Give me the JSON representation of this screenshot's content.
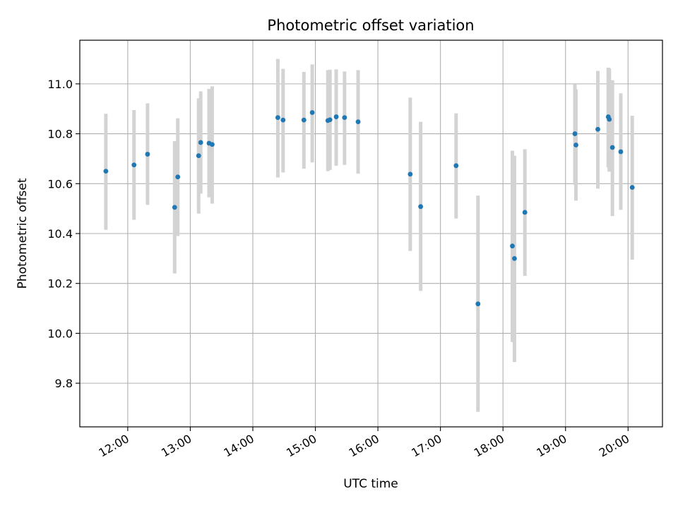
{
  "chart_data": {
    "type": "scatter",
    "title": "Photometric offset variation",
    "xlabel": "UTC time",
    "ylabel": "Photometric offset",
    "x_tick_labels": [
      "12:00",
      "13:00",
      "14:00",
      "15:00",
      "16:00",
      "17:00",
      "18:00",
      "19:00",
      "20:00"
    ],
    "x_tick_values": [
      "12:00",
      "13:00",
      "14:00",
      "15:00",
      "16:00",
      "17:00",
      "18:00",
      "19:00",
      "20:00"
    ],
    "y_tick_labels": [
      "9.8",
      "10.0",
      "10.2",
      "10.4",
      "10.6",
      "10.8",
      "11.0"
    ],
    "y_tick_values": [
      9.8,
      10.0,
      10.2,
      10.4,
      10.6,
      10.8,
      11.0
    ],
    "xlim": [
      "11:14",
      "20:33"
    ],
    "ylim": [
      9.625,
      11.175
    ],
    "grid": true,
    "colors": {
      "points": "#1f77b4",
      "error_bars": "#d3d3d3",
      "grid": "#b0b0b0"
    },
    "points": [
      {
        "x": "11:39",
        "y": 10.65,
        "err_low": 10.415,
        "err_high": 10.88
      },
      {
        "x": "12:06",
        "y": 10.675,
        "err_low": 10.455,
        "err_high": 10.895
      },
      {
        "x": "12:19",
        "y": 10.718,
        "err_low": 10.515,
        "err_high": 10.922
      },
      {
        "x": "12:45",
        "y": 10.505,
        "err_low": 10.24,
        "err_high": 10.77
      },
      {
        "x": "12:48",
        "y": 10.627,
        "err_low": 10.39,
        "err_high": 10.862
      },
      {
        "x": "13:08",
        "y": 10.712,
        "err_low": 10.48,
        "err_high": 10.942
      },
      {
        "x": "13:10",
        "y": 10.765,
        "err_low": 10.56,
        "err_high": 10.97
      },
      {
        "x": "13:18",
        "y": 10.762,
        "err_low": 10.545,
        "err_high": 10.98
      },
      {
        "x": "13:21",
        "y": 10.757,
        "err_low": 10.52,
        "err_high": 10.99
      },
      {
        "x": "14:24",
        "y": 10.865,
        "err_low": 10.625,
        "err_high": 11.1
      },
      {
        "x": "14:29",
        "y": 10.855,
        "err_low": 10.645,
        "err_high": 11.06
      },
      {
        "x": "14:49",
        "y": 10.855,
        "err_low": 10.66,
        "err_high": 11.048
      },
      {
        "x": "14:57",
        "y": 10.885,
        "err_low": 10.685,
        "err_high": 11.078
      },
      {
        "x": "15:12",
        "y": 10.853,
        "err_low": 10.65,
        "err_high": 11.055
      },
      {
        "x": "15:14",
        "y": 10.856,
        "err_low": 10.655,
        "err_high": 11.057
      },
      {
        "x": "15:20",
        "y": 10.868,
        "err_low": 10.672,
        "err_high": 11.058
      },
      {
        "x": "15:28",
        "y": 10.865,
        "err_low": 10.675,
        "err_high": 11.05
      },
      {
        "x": "15:41",
        "y": 10.848,
        "err_low": 10.64,
        "err_high": 11.055
      },
      {
        "x": "16:31",
        "y": 10.638,
        "err_low": 10.33,
        "err_high": 10.945
      },
      {
        "x": "16:41",
        "y": 10.508,
        "err_low": 10.17,
        "err_high": 10.848
      },
      {
        "x": "17:15",
        "y": 10.672,
        "err_low": 10.46,
        "err_high": 10.882
      },
      {
        "x": "17:36",
        "y": 10.118,
        "err_low": 9.685,
        "err_high": 10.552
      },
      {
        "x": "18:09",
        "y": 10.35,
        "err_low": 9.965,
        "err_high": 10.732
      },
      {
        "x": "18:11",
        "y": 10.3,
        "err_low": 9.885,
        "err_high": 10.712
      },
      {
        "x": "18:21",
        "y": 10.485,
        "err_low": 10.23,
        "err_high": 10.738
      },
      {
        "x": "19:09",
        "y": 10.8,
        "err_low": 10.595,
        "err_high": 10.998
      },
      {
        "x": "19:10",
        "y": 10.755,
        "err_low": 10.532,
        "err_high": 10.978
      },
      {
        "x": "19:31",
        "y": 10.818,
        "err_low": 10.58,
        "err_high": 11.052
      },
      {
        "x": "19:41",
        "y": 10.868,
        "err_low": 10.665,
        "err_high": 11.065
      },
      {
        "x": "19:42",
        "y": 10.858,
        "err_low": 10.648,
        "err_high": 11.062
      },
      {
        "x": "19:45",
        "y": 10.745,
        "err_low": 10.47,
        "err_high": 11.015
      },
      {
        "x": "19:53",
        "y": 10.728,
        "err_low": 10.495,
        "err_high": 10.962
      },
      {
        "x": "20:04",
        "y": 10.585,
        "err_low": 10.295,
        "err_high": 10.872
      }
    ]
  }
}
